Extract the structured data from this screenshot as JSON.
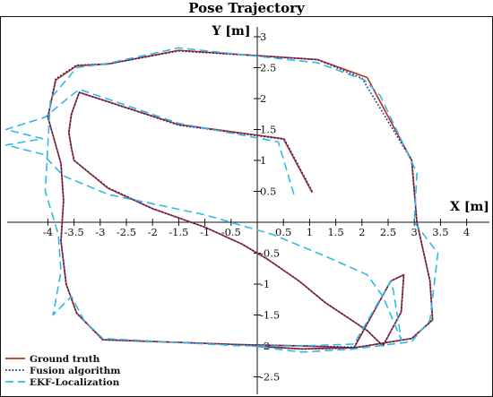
{
  "chart_data": {
    "type": "line",
    "title": "Pose Trajectory",
    "xlabel": "X [m]",
    "ylabel": "Y [m]",
    "xlim": [
      -4.8,
      4.4
    ],
    "ylim": [
      -2.75,
      3.2
    ],
    "x_ticks": [
      -4,
      -3.5,
      -3,
      -2.5,
      -2,
      -1.5,
      -1,
      -0.5,
      0.5,
      1,
      1.5,
      2,
      2.5,
      3,
      3.5,
      4
    ],
    "x_tick_labels": [
      "-4",
      "-3.5",
      "-3",
      "-2.5",
      "-2",
      "-1.5",
      "-1",
      "-0.5",
      "0.5",
      "1",
      "1.5",
      "2",
      "2.5",
      "3",
      "3.5",
      "4"
    ],
    "y_ticks": [
      3,
      2.5,
      2,
      1.5,
      1,
      0.5,
      -0.5,
      -1,
      -1.5,
      -2,
      -2.5
    ],
    "y_tick_labels": [
      "3",
      "2.5",
      "2",
      "1.5",
      "1",
      "0.5",
      "-0.5",
      "-1",
      "-1.5",
      "-2",
      "-2.5"
    ],
    "grid": false,
    "legend_position": "bottom-left",
    "series": [
      {
        "name": "Ground truth",
        "color": "#b5361f",
        "style": "solid",
        "x": [
          1.05,
          0.5,
          -1.5,
          -3.4,
          -3.55,
          -3.6,
          -3.55,
          -3.5,
          -2.85,
          -2.0,
          -1.0,
          -0.3,
          0.2,
          0.8,
          1.3,
          2.1,
          2.4,
          2.75,
          2.8,
          2.55,
          1.85,
          0.85,
          -0.3,
          -2.95,
          -3.45,
          -3.65,
          -3.75,
          -3.7,
          -3.75,
          -4.0,
          -3.85,
          -3.45,
          -2.85,
          -1.5,
          1.15,
          2.1,
          2.95,
          3.05,
          3.3,
          3.35,
          2.95,
          1.85,
          0.85,
          -0.1
        ],
        "y": [
          0.48,
          1.35,
          1.58,
          2.1,
          1.75,
          1.45,
          1.2,
          1.0,
          0.55,
          0.22,
          -0.08,
          -0.35,
          -0.6,
          -0.95,
          -1.3,
          -1.75,
          -2.0,
          -1.45,
          -0.85,
          -0.95,
          -2.03,
          -2.0,
          -1.98,
          -1.9,
          -1.47,
          -1.0,
          -0.3,
          0.35,
          0.95,
          1.7,
          2.3,
          2.53,
          2.56,
          2.78,
          2.63,
          2.34,
          1.0,
          0.0,
          -0.95,
          -1.58,
          -1.88,
          -2.03,
          -2.05,
          -2.0
        ]
      },
      {
        "name": "Fusion algorithm",
        "color": "#1d1d8e",
        "style": "dotted",
        "x": [
          1.05,
          0.52,
          -1.5,
          -3.4,
          -3.55,
          -3.6,
          -3.55,
          -3.5,
          -2.85,
          -2.0,
          -1.0,
          -0.3,
          0.2,
          0.8,
          1.3,
          2.1,
          2.4,
          2.75,
          2.8,
          2.55,
          1.85,
          0.85,
          -0.3,
          -2.95,
          -3.45,
          -3.65,
          -3.75,
          -3.7,
          -3.75,
          -4.0,
          -3.85,
          -3.45,
          -2.85,
          -1.5,
          1.15,
          2.0,
          2.95,
          3.05,
          3.3,
          3.35,
          2.95,
          1.85,
          0.85,
          -0.1
        ],
        "y": [
          0.5,
          1.34,
          1.57,
          2.1,
          1.75,
          1.45,
          1.2,
          1.0,
          0.56,
          0.22,
          -0.08,
          -0.35,
          -0.6,
          -0.95,
          -1.3,
          -1.75,
          -2.0,
          -1.45,
          -0.85,
          -0.95,
          -2.02,
          -2.0,
          -1.98,
          -1.9,
          -1.47,
          -1.0,
          -0.3,
          0.35,
          0.95,
          1.7,
          2.32,
          2.54,
          2.56,
          2.77,
          2.63,
          2.33,
          1.0,
          0.0,
          -0.95,
          -1.58,
          -1.88,
          -2.03,
          -2.05,
          -2.0
        ]
      },
      {
        "name": "EKF-Localization",
        "color": "#33b7e6",
        "style": "dashed",
        "x": [
          0.7,
          0.4,
          -1.5,
          -3.4,
          -3.7,
          -4.05,
          -4.8,
          -4.1,
          -4.8,
          -4.1,
          -3.7,
          -2.85,
          -1.0,
          0.3,
          1.3,
          2.1,
          2.4,
          2.75,
          2.6,
          2.55,
          1.85,
          0.85,
          -0.3,
          -2.95,
          -3.3,
          -3.55,
          -3.9,
          -3.75,
          -3.8,
          -4.05,
          -3.95,
          -3.45,
          -2.85,
          -1.5,
          1.15,
          2.05,
          2.35,
          2.6,
          3.05,
          3.0,
          3.45,
          3.3,
          2.95,
          1.85,
          0.85,
          -0.1
        ],
        "y": [
          0.45,
          1.3,
          1.6,
          2.15,
          1.95,
          1.7,
          1.5,
          1.35,
          1.25,
          1.1,
          0.75,
          0.45,
          0.12,
          -0.2,
          -0.55,
          -0.85,
          -1.2,
          -1.9,
          -1.1,
          -0.95,
          -1.97,
          -2.0,
          -2.0,
          -1.88,
          -1.6,
          -1.2,
          -1.5,
          -0.8,
          -0.2,
          0.5,
          2.0,
          2.5,
          2.57,
          2.82,
          2.58,
          2.3,
          2.05,
          1.6,
          0.8,
          0.0,
          -0.5,
          -1.58,
          -1.93,
          -2.05,
          -2.1,
          -2.0
        ]
      }
    ]
  }
}
